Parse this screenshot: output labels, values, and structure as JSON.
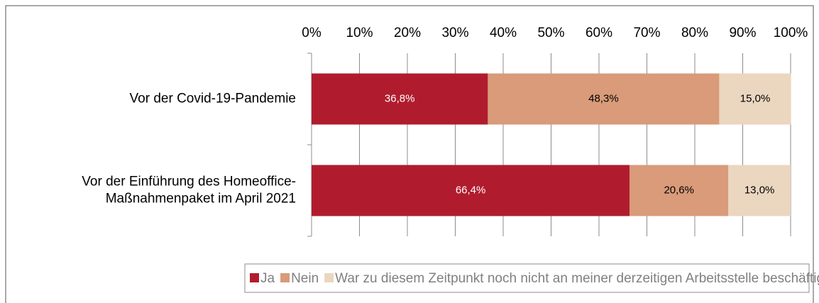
{
  "chart_data": {
    "type": "stacked-bar-horizontal",
    "categories": [
      "Vor der Covid-19-Pandemie",
      "Vor der Einführung des Homeoffice-Maßnahmenpaket im April 2021"
    ],
    "series": [
      {
        "name": "Ja",
        "color": "#b01c2e",
        "values": [
          36.8,
          66.4
        ],
        "value_labels": [
          "36,8%",
          "66,4%"
        ]
      },
      {
        "name": "Nein",
        "color": "#d99b79",
        "values": [
          48.3,
          20.6
        ],
        "value_labels": [
          "48,3%",
          "20,6%"
        ]
      },
      {
        "name": "War zu diesem Zeitpunkt noch nicht an meiner derzeitigen Arbeitsstelle beschäftigt",
        "color": "#ebd6c0",
        "values": [
          15.0,
          13.0
        ],
        "value_labels": [
          "15,0%",
          "13,0%"
        ]
      }
    ],
    "xlim": [
      0,
      100
    ],
    "xticks": [
      {
        "value": 0,
        "label": "0%"
      },
      {
        "value": 10,
        "label": "10%"
      },
      {
        "value": 20,
        "label": "20%"
      },
      {
        "value": 30,
        "label": "30%"
      },
      {
        "value": 40,
        "label": "40%"
      },
      {
        "value": 50,
        "label": "50%"
      },
      {
        "value": 60,
        "label": "60%"
      },
      {
        "value": 70,
        "label": "70%"
      },
      {
        "value": 80,
        "label": "80%"
      },
      {
        "value": 90,
        "label": "90%"
      },
      {
        "value": 100,
        "label": "100%"
      }
    ],
    "grid": true,
    "legend": "bottom"
  }
}
